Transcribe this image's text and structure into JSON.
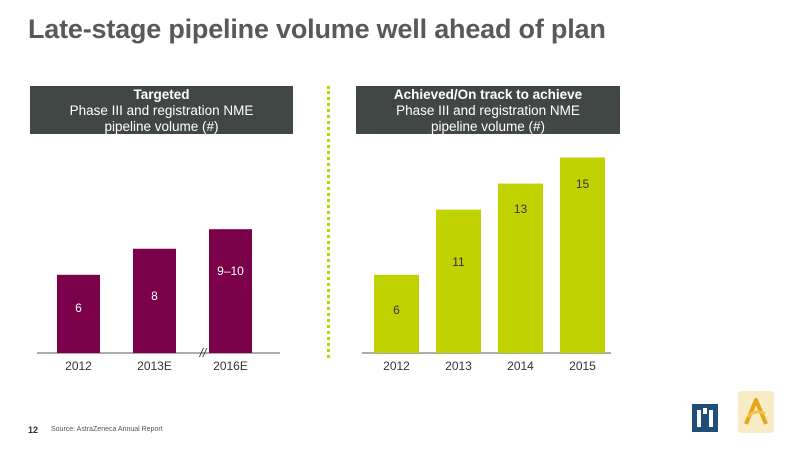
{
  "page": {
    "title": "Late-stage pipeline volume well ahead of plan",
    "page_number": "12",
    "source": "Source: AstraZeneca Annual Report"
  },
  "left_panel": {
    "header_bold": "Targeted",
    "header_line1": "Phase III and registration NME",
    "header_line2": "pipeline volume (#)"
  },
  "right_panel": {
    "header_bold": "Achieved/On track to achieve",
    "header_line1": "Phase III and registration NME",
    "header_line2": "pipeline volume (#)"
  },
  "logos": {
    "left": "m-logo-icon",
    "right": "astrazeneca-logo-icon"
  },
  "colors": {
    "title": "#595959",
    "header_bg": "#414745",
    "targeted_bar": "#7a0049",
    "achieved_bar": "#c0d200",
    "axis": "#595959",
    "divider": "#c0d200"
  },
  "chart_data": [
    {
      "type": "bar",
      "title": "Targeted Phase III and registration NME pipeline volume (#)",
      "categories": [
        "2012",
        "2013E",
        "2016E"
      ],
      "values": [
        6,
        8,
        9.5
      ],
      "labels": [
        "6",
        "8",
        "9–10"
      ],
      "axis_break_marker": "//",
      "ylim": [
        0,
        15.5
      ],
      "xlabel": "",
      "ylabel": ""
    },
    {
      "type": "bar",
      "title": "Achieved/On track to achieve Phase III and registration NME pipeline volume (#)",
      "categories": [
        "2012",
        "2013",
        "2014",
        "2015"
      ],
      "values": [
        6,
        11,
        13,
        15
      ],
      "labels": [
        "6",
        "11",
        "13",
        "15"
      ],
      "ylim": [
        0,
        15.5
      ],
      "xlabel": "",
      "ylabel": ""
    }
  ]
}
